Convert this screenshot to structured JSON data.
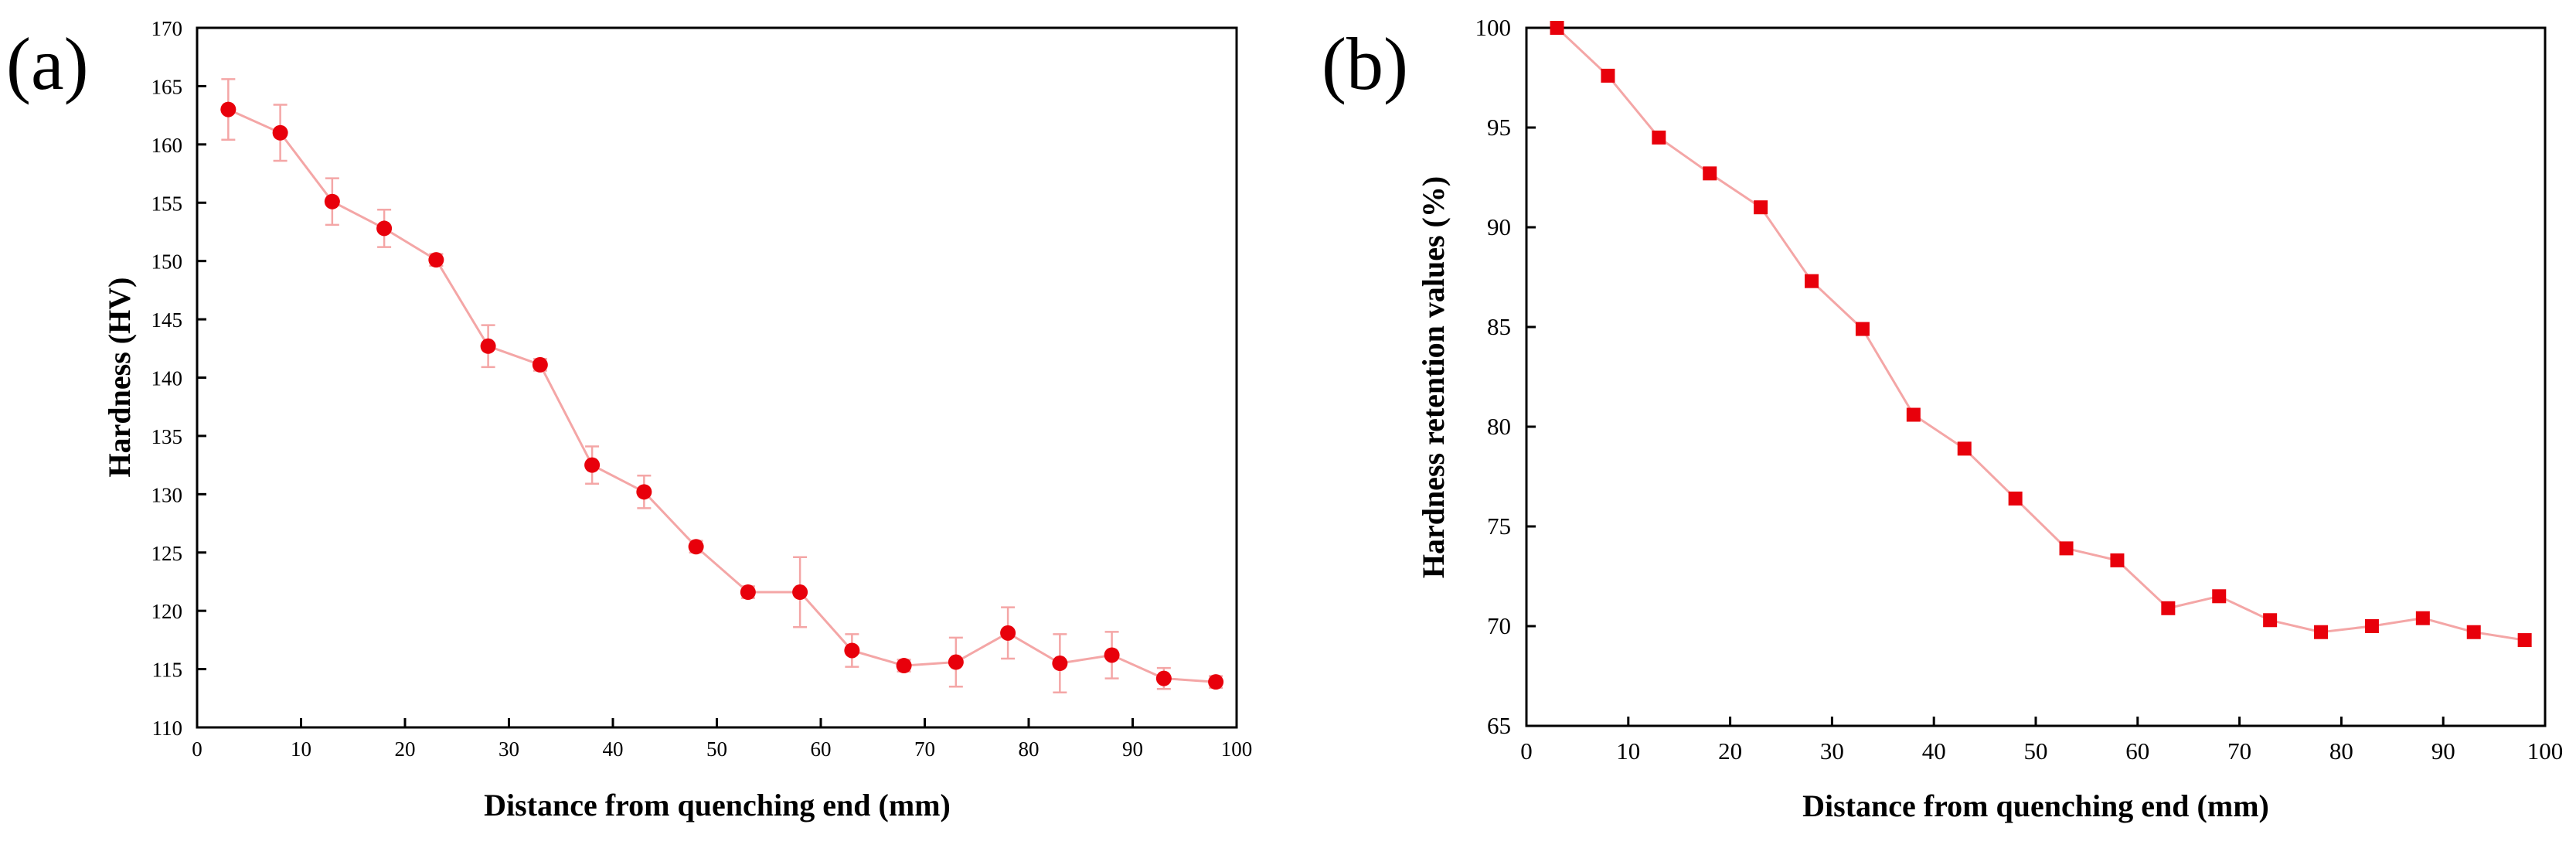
{
  "panels": {
    "a": {
      "label": "(a)"
    },
    "b": {
      "label": "(b)"
    }
  },
  "colors": {
    "marker": "#e8000b",
    "line": "#f4a6a6",
    "error_bar": "#f4a6a6",
    "axis": "#000000"
  },
  "chart_data": [
    {
      "id": "a",
      "type": "line",
      "title": "",
      "xlabel": "Distance from quenching end (mm)",
      "ylabel": "Hardness (HV)",
      "xlim": [
        0,
        100
      ],
      "ylim": [
        110,
        170
      ],
      "xticks": [
        0,
        10,
        20,
        30,
        40,
        50,
        60,
        70,
        80,
        90,
        100
      ],
      "yticks": [
        110,
        115,
        120,
        125,
        130,
        135,
        140,
        145,
        150,
        155,
        160,
        165,
        170
      ],
      "marker": "circle",
      "grid": false,
      "series": [
        {
          "name": "Hardness",
          "x": [
            3,
            8,
            13,
            18,
            23,
            28,
            33,
            38,
            43,
            48,
            53,
            58,
            63,
            68,
            73,
            78,
            83,
            88,
            93,
            98
          ],
          "y": [
            163.0,
            161.0,
            155.1,
            152.8,
            150.1,
            142.7,
            141.1,
            132.5,
            130.2,
            125.5,
            121.6,
            121.6,
            116.6,
            115.3,
            115.6,
            118.1,
            115.5,
            116.2,
            114.2,
            113.9
          ],
          "error": [
            2.6,
            2.4,
            2.0,
            1.6,
            0.5,
            1.8,
            0.5,
            1.6,
            1.4,
            0.5,
            0.5,
            3.0,
            1.4,
            0.5,
            2.1,
            2.2,
            2.5,
            2.0,
            0.9,
            0.5
          ]
        }
      ]
    },
    {
      "id": "b",
      "type": "line",
      "title": "",
      "xlabel": "Distance from quenching end (mm)",
      "ylabel": "Hardness retention values (%)",
      "xlim": [
        0,
        100
      ],
      "ylim": [
        65,
        100
      ],
      "xticks": [
        0,
        10,
        20,
        30,
        40,
        50,
        60,
        70,
        80,
        90,
        100
      ],
      "yticks": [
        65,
        70,
        75,
        80,
        85,
        90,
        95,
        100
      ],
      "marker": "square",
      "grid": false,
      "series": [
        {
          "name": "Hardness retention",
          "x": [
            3,
            8,
            13,
            18,
            23,
            28,
            33,
            38,
            43,
            48,
            53,
            58,
            63,
            68,
            73,
            78,
            83,
            88,
            93,
            98
          ],
          "y": [
            100.0,
            97.6,
            94.5,
            92.7,
            91.0,
            87.3,
            84.9,
            80.6,
            78.9,
            76.4,
            73.9,
            73.3,
            70.9,
            71.5,
            70.3,
            69.7,
            70.0,
            70.4,
            69.7,
            69.3
          ]
        }
      ]
    }
  ]
}
